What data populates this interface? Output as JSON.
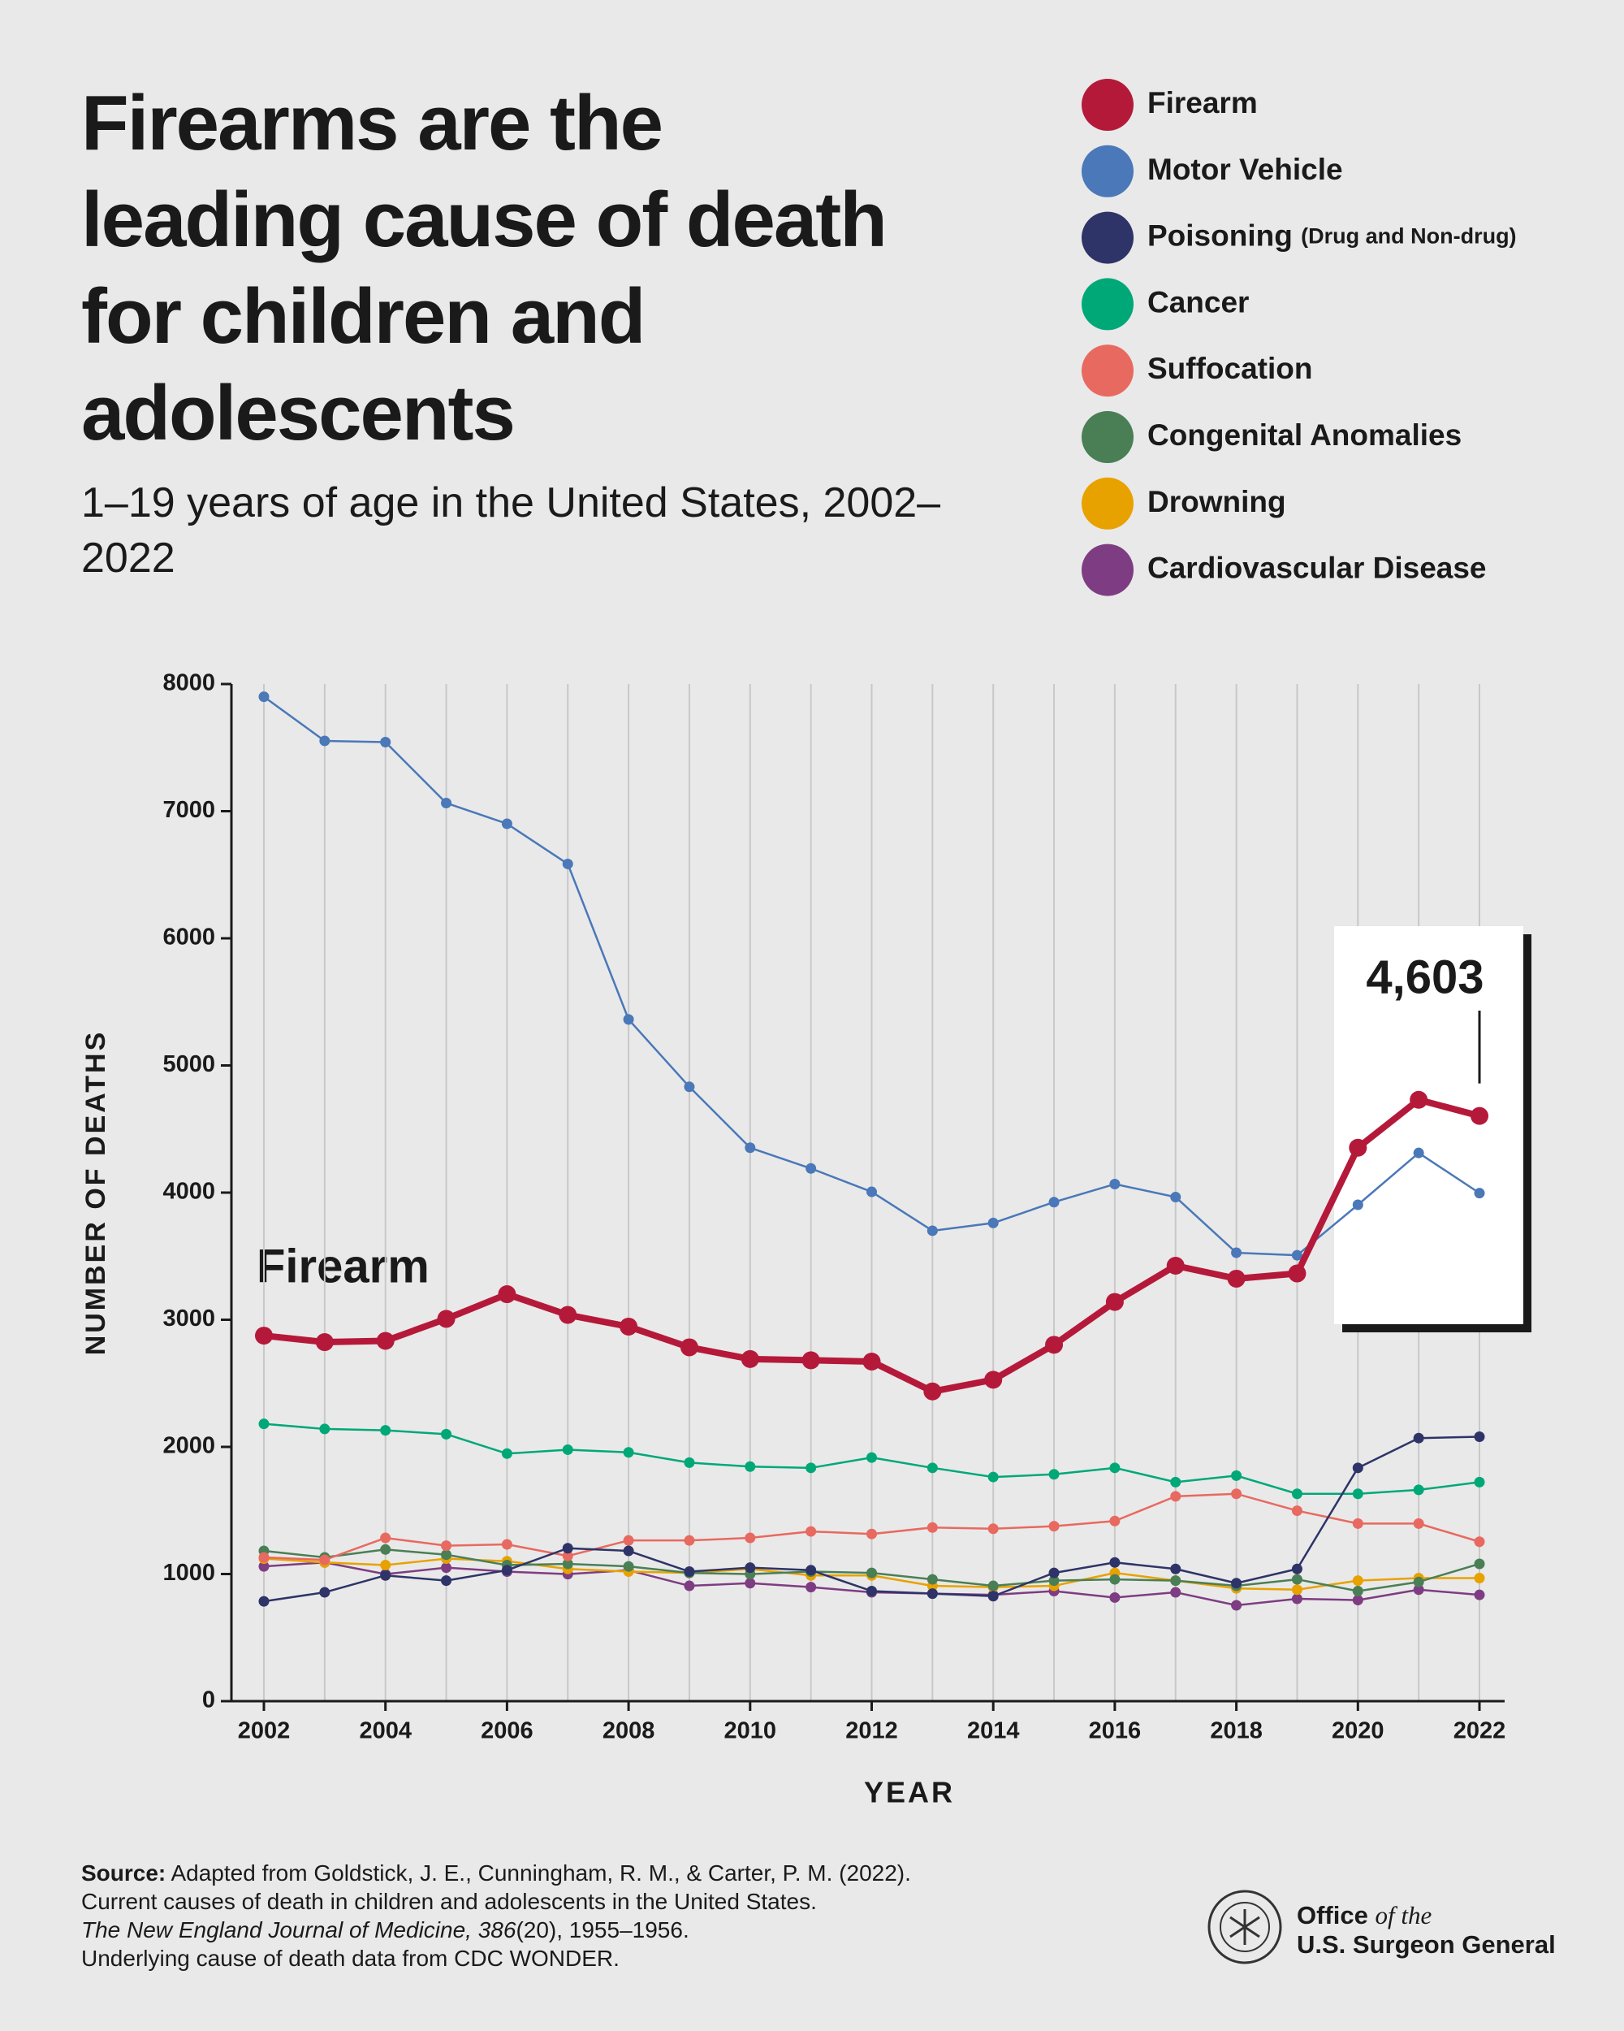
{
  "chart_data": {
    "type": "line",
    "title": "Firearms are the leading cause of death for children and adolescents",
    "subtitle": "1–19 years of age in the United States, 2002–2022",
    "x_label": "YEAR",
    "y_label": "NUMBER OF DEATHS",
    "annotation": "Firearm",
    "x": [
      2002,
      2003,
      2004,
      2005,
      2006,
      2007,
      2008,
      2009,
      2010,
      2011,
      2012,
      2013,
      2014,
      2015,
      2016,
      2017,
      2018,
      2019,
      2020,
      2021,
      2022
    ],
    "xlim": [
      2002,
      2022
    ],
    "xticks": [
      2002,
      2004,
      2006,
      2008,
      2010,
      2012,
      2014,
      2016,
      2018,
      2020,
      2022
    ],
    "ylim": [
      0,
      8000
    ],
    "yticks": [
      0,
      1000,
      2000,
      3000,
      4000,
      5000,
      6000,
      7000,
      8000
    ],
    "grid": true,
    "legend": "top-right",
    "series": [
      {
        "name": "Firearm",
        "color": "#b5193a",
        "highlight": true,
        "values": [
          2875,
          2824,
          2834,
          3007,
          3201,
          3038,
          2946,
          2783,
          2691,
          2681,
          2671,
          2436,
          2528,
          2803,
          3140,
          3425,
          3323,
          3364,
          4353,
          4730,
          4603
        ],
        "value_labels": [
          null,
          null,
          null,
          null,
          null,
          null,
          null,
          null,
          null,
          null,
          null,
          null,
          null,
          null,
          null,
          null,
          null,
          null,
          null,
          null,
          "4,603"
        ]
      },
      {
        "name": "Motor Vehicle",
        "color": "#4a78b8",
        "values": [
          7900,
          7553,
          7543,
          7064,
          6901,
          6585,
          5362,
          4832,
          4353,
          4190,
          4006,
          3700,
          3761,
          3925,
          4067,
          3965,
          3527,
          3507,
          3904,
          4312,
          3996
        ]
      },
      {
        "name": "Poisoning",
        "note": "(Drug and Non-drug)",
        "color": "#2e3468",
        "values": [
          785,
          856,
          989,
          948,
          1030,
          1203,
          1182,
          1019,
          1050,
          1030,
          866,
          846,
          826,
          1009,
          1091,
          1040,
          928,
          1040,
          1835,
          2069,
          2080
        ]
      },
      {
        "name": "Cancer",
        "color": "#00a878",
        "values": [
          2181,
          2141,
          2130,
          2100,
          1947,
          1978,
          1957,
          1876,
          1845,
          1835,
          1916,
          1835,
          1763,
          1784,
          1835,
          1723,
          1774,
          1631,
          1631,
          1662,
          1723
        ]
      },
      {
        "name": "Suffocation",
        "color": "#e8695f",
        "values": [
          1131,
          1111,
          1284,
          1223,
          1233,
          1142,
          1264,
          1264,
          1284,
          1335,
          1315,
          1366,
          1356,
          1376,
          1417,
          1611,
          1631,
          1498,
          1397,
          1397,
          1254
        ]
      },
      {
        "name": "Congenital Anomalies",
        "color": "#4a7f55",
        "values": [
          1182,
          1131,
          1193,
          1152,
          1070,
          1080,
          1060,
          1009,
          999,
          1019,
          1009,
          958,
          907,
          948,
          958,
          948,
          907,
          958,
          866,
          938,
          1080
        ]
      },
      {
        "name": "Drowning",
        "color": "#e8a200",
        "values": [
          1121,
          1091,
          1070,
          1121,
          1101,
          1040,
          1019,
          1009,
          1040,
          989,
          989,
          907,
          897,
          907,
          1009,
          948,
          887,
          877,
          948,
          968,
          968
        ]
      },
      {
        "name": "Cardiovascular Disease",
        "color": "#7e3c82",
        "values": [
          1060,
          1091,
          999,
          1050,
          1019,
          999,
          1030,
          907,
          928,
          897,
          856,
          846,
          836,
          866,
          815,
          856,
          754,
          805,
          795,
          877,
          836
        ]
      }
    ]
  },
  "source": {
    "label": "Source:",
    "line1": "Adapted from Goldstick, J. E., Cunningham, R. M., & Carter, P. M. (2022).",
    "line2": "Current causes of death in children and adolescents in the United States.",
    "line3_italic": "The New England Journal of Medicine, 386",
    "line3": "(20), 1955–1956.",
    "line4": "Underlying cause of death data from CDC WONDER."
  },
  "logo": {
    "office": "Office",
    "of_the": "of the",
    "name": "U.S. Surgeon General"
  }
}
